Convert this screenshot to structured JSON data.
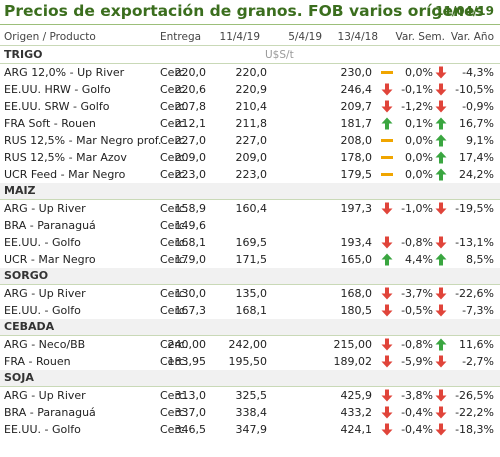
{
  "title": "Precios de exportación de granos. FOB varios orígenes",
  "date": "11/04/19",
  "headers": [
    "Origen / Producto",
    "Entrega",
    "11/4/19",
    "5/4/19",
    "13/4/18",
    "Var. Sem.",
    "Var. Año"
  ],
  "unit": "U$S/t",
  "colors": {
    "up": "#3aa640",
    "down": "#e0443a",
    "flat": "#f0a500",
    "title": "#3b6e1e"
  },
  "sections": [
    {
      "name": "TRIGO",
      "rows": [
        {
          "name": "ARG 12,0% - Up River",
          "entrega": "Cerc.",
          "v1": "220,0",
          "v2": "220,0",
          "v3": "230,0",
          "ico1": "flat-icon",
          "sem": "0,0%",
          "ico2": "down-arrow-icon",
          "anio": "-4,3%"
        },
        {
          "name": "EE.UU. HRW - Golfo",
          "entrega": "Cerc.",
          "v1": "220,6",
          "v2": "220,9",
          "v3": "246,4",
          "ico1": "down-arrow-icon",
          "sem": "-0,1%",
          "ico2": "down-arrow-icon",
          "anio": "-10,5%"
        },
        {
          "name": "EE.UU. SRW - Golfo",
          "entrega": "Cerc.",
          "v1": "207,8",
          "v2": "210,4",
          "v3": "209,7",
          "ico1": "down-arrow-icon",
          "sem": "-1,2%",
          "ico2": "down-arrow-icon",
          "anio": "-0,9%"
        },
        {
          "name": "FRA Soft - Rouen",
          "entrega": "Cerc.",
          "v1": "212,1",
          "v2": "211,8",
          "v3": "181,7",
          "ico1": "up-arrow-icon",
          "sem": "0,1%",
          "ico2": "up-arrow-icon",
          "anio": "16,7%"
        },
        {
          "name": "RUS 12,5% - Mar Negro prof.",
          "entrega": "Cerc.",
          "v1": "227,0",
          "v2": "227,0",
          "v3": "208,0",
          "ico1": "flat-icon",
          "sem": "0,0%",
          "ico2": "up-arrow-icon",
          "anio": "9,1%"
        },
        {
          "name": "RUS 12,5% - Mar Azov",
          "entrega": "Cerc.",
          "v1": "209,0",
          "v2": "209,0",
          "v3": "178,0",
          "ico1": "flat-icon",
          "sem": "0,0%",
          "ico2": "up-arrow-icon",
          "anio": "17,4%"
        },
        {
          "name": "UCR Feed - Mar Negro",
          "entrega": "Cerc.",
          "v1": "223,0",
          "v2": "223,0",
          "v3": "179,5",
          "ico1": "flat-icon",
          "sem": "0,0%",
          "ico2": "up-arrow-icon",
          "anio": "24,2%"
        }
      ]
    },
    {
      "name": "MAIZ",
      "rows": [
        {
          "name": "ARG - Up River",
          "entrega": "Cerc.",
          "v1": "158,9",
          "v2": "160,4",
          "v3": "197,3",
          "ico1": "down-arrow-icon",
          "sem": "-1,0%",
          "ico2": "down-arrow-icon",
          "anio": "-19,5%"
        },
        {
          "name": "BRA - Paranaguá",
          "entrega": "Cerc.",
          "v1": "149,6",
          "v2": "",
          "v3": "",
          "ico1": "",
          "sem": "",
          "ico2": "",
          "anio": ""
        },
        {
          "name": "EE.UU. - Golfo",
          "entrega": "Cerc.",
          "v1": "168,1",
          "v2": "169,5",
          "v3": "193,4",
          "ico1": "down-arrow-icon",
          "sem": "-0,8%",
          "ico2": "down-arrow-icon",
          "anio": "-13,1%"
        },
        {
          "name": "UCR - Mar Negro",
          "entrega": "Cerc.",
          "v1": "179,0",
          "v2": "171,5",
          "v3": "165,0",
          "ico1": "up-arrow-icon",
          "sem": "4,4%",
          "ico2": "up-arrow-icon",
          "anio": "8,5%"
        }
      ]
    },
    {
      "name": "SORGO",
      "rows": [
        {
          "name": "ARG - Up River",
          "entrega": "Cerc.",
          "v1": "130,0",
          "v2": "135,0",
          "v3": "168,0",
          "ico1": "down-arrow-icon",
          "sem": "-3,7%",
          "ico2": "down-arrow-icon",
          "anio": "-22,6%"
        },
        {
          "name": "EE.UU. - Golfo",
          "entrega": "Cerc.",
          "v1": "167,3",
          "v2": "168,1",
          "v3": "180,5",
          "ico1": "down-arrow-icon",
          "sem": "-0,5%",
          "ico2": "down-arrow-icon",
          "anio": "-7,3%"
        }
      ]
    },
    {
      "name": "CEBADA",
      "rows": [
        {
          "name": "ARG - Neco/BB",
          "entrega": "Cerc.",
          "v1": "240,00",
          "v2": "242,00",
          "v3": "215,00",
          "ico1": "down-arrow-icon",
          "sem": "-0,8%",
          "ico2": "up-arrow-icon",
          "anio": "11,6%"
        },
        {
          "name": "FRA - Rouen",
          "entrega": "Cerc.",
          "v1": "183,95",
          "v2": "195,50",
          "v3": "189,02",
          "ico1": "down-arrow-icon",
          "sem": "-5,9%",
          "ico2": "down-arrow-icon",
          "anio": "-2,7%"
        }
      ]
    },
    {
      "name": "SOJA",
      "rows": [
        {
          "name": "ARG - Up River",
          "entrega": "Cerc.",
          "v1": "313,0",
          "v2": "325,5",
          "v3": "425,9",
          "ico1": "down-arrow-icon",
          "sem": "-3,8%",
          "ico2": "down-arrow-icon",
          "anio": "-26,5%"
        },
        {
          "name": "BRA - Paranaguá",
          "entrega": "Cerc.",
          "v1": "337,0",
          "v2": "338,4",
          "v3": "433,2",
          "ico1": "down-arrow-icon",
          "sem": "-0,4%",
          "ico2": "down-arrow-icon",
          "anio": "-22,2%"
        },
        {
          "name": "EE.UU. - Golfo",
          "entrega": "Cerc.",
          "v1": "346,5",
          "v2": "347,9",
          "v3": "424,1",
          "ico1": "down-arrow-icon",
          "sem": "-0,4%",
          "ico2": "down-arrow-icon",
          "anio": "-18,3%"
        }
      ]
    }
  ]
}
